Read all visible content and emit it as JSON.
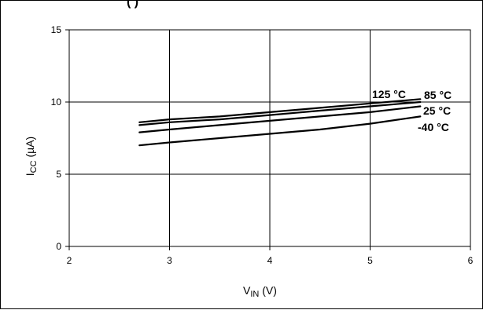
{
  "top_text": "(           )",
  "chart_data": {
    "type": "line",
    "xlabel": {
      "main": "V",
      "sub": "IN",
      "unit": " (V)"
    },
    "ylabel": {
      "main": "I",
      "sub": "CC",
      "unit": " (µA)"
    },
    "xlim": [
      2,
      6
    ],
    "ylim": [
      0,
      15
    ],
    "x_ticks": [
      "2",
      "3",
      "4",
      "5",
      "6"
    ],
    "y_ticks": [
      "0",
      "5",
      "10",
      "15"
    ],
    "grid": true,
    "x_tick_values": [
      2,
      3,
      4,
      5,
      6
    ],
    "y_tick_values": [
      0,
      5,
      10,
      15
    ],
    "series": [
      {
        "name": "125 °C",
        "x": [
          2.7,
          3.0,
          3.5,
          4.0,
          4.5,
          5.0,
          5.5
        ],
        "y": [
          8.6,
          8.8,
          9.0,
          9.3,
          9.6,
          9.9,
          10.2
        ]
      },
      {
        "name": "85 °C",
        "x": [
          2.7,
          3.0,
          3.5,
          4.0,
          4.5,
          5.0,
          5.5
        ],
        "y": [
          8.4,
          8.6,
          8.8,
          9.1,
          9.4,
          9.7,
          10.0
        ]
      },
      {
        "name": "25 °C",
        "x": [
          2.7,
          3.0,
          3.5,
          4.0,
          4.5,
          5.0,
          5.5
        ],
        "y": [
          7.9,
          8.1,
          8.4,
          8.7,
          9.0,
          9.3,
          9.7
        ]
      },
      {
        "name": "-40 °C",
        "x": [
          2.7,
          3.0,
          3.5,
          4.0,
          4.5,
          5.0,
          5.5
        ],
        "y": [
          7.0,
          7.2,
          7.5,
          7.8,
          8.1,
          8.5,
          9.0
        ]
      }
    ],
    "line_color": "#000000",
    "grid_color": "#000000"
  }
}
